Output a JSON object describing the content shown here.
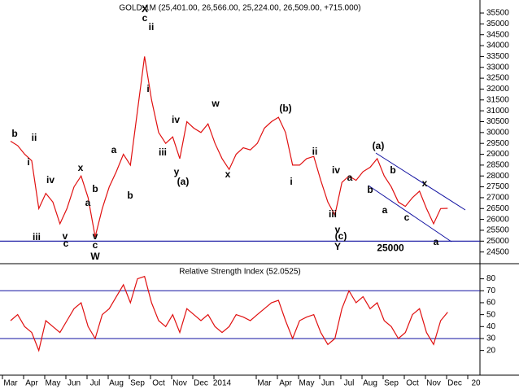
{
  "chart_data": [
    {
      "type": "line",
      "title": "GOLD-1M (25,401.00, 26,566.00, 25,224.00, 26,509.00, +715.000)",
      "color": "#e01010",
      "values": [
        29600,
        29400,
        29000,
        28700,
        26500,
        27200,
        26800,
        25800,
        26500,
        27500,
        28000,
        27000,
        25200,
        26500,
        27500,
        28200,
        29000,
        28500,
        31000,
        33500,
        31500,
        30000,
        29500,
        29800,
        28800,
        30500,
        30200,
        30000,
        30400,
        29500,
        28800,
        28300,
        29000,
        29300,
        29200,
        29500,
        30200,
        30500,
        30700,
        30000,
        28500,
        28500,
        28800,
        28900,
        27800,
        26800,
        26200,
        27700,
        28000,
        27800,
        28200,
        28400,
        28800,
        28000,
        27500,
        26800,
        26600,
        27000,
        27300,
        26500,
        25800,
        26500,
        26509,
        null,
        null,
        null,
        null
      ],
      "ylim": [
        24000,
        36100
      ],
      "yticks": [
        24500,
        25000,
        25500,
        26000,
        26500,
        27000,
        27500,
        28000,
        28500,
        29000,
        29500,
        30000,
        30500,
        31000,
        31500,
        32000,
        32500,
        33000,
        33500,
        34000,
        34500,
        35000,
        35500
      ],
      "hline": 25000,
      "hline_color": "#1010a0",
      "annotations": [
        {
          "text": "b",
          "color": "#1010c0"
        },
        {
          "text": "ii",
          "color": "#1010c0"
        },
        {
          "text": "i",
          "color": "#1010c0"
        },
        {
          "text": "iii",
          "color": "#1010c0"
        },
        {
          "text": "iv",
          "color": "#1010c0"
        },
        {
          "text": "v",
          "color": "#1010c0"
        },
        {
          "text": "c",
          "color": "#1010c0"
        },
        {
          "text": "x",
          "color": "#1010c0"
        },
        {
          "text": "b",
          "color": "#1010c0"
        },
        {
          "text": "a",
          "color": "#1010c0"
        },
        {
          "text": "v",
          "color": "#1010c0"
        },
        {
          "text": "c",
          "color": "#1010c0"
        },
        {
          "text": "W",
          "color": "#d01010"
        },
        {
          "text": "a",
          "color": "#1010c0"
        },
        {
          "text": "b",
          "color": "#1010c0"
        },
        {
          "text": "X",
          "color": "#d01010"
        },
        {
          "text": "c",
          "color": "#1010c0"
        },
        {
          "text": "ii",
          "color": "#1010c0"
        },
        {
          "text": "i",
          "color": "#1010c0"
        },
        {
          "text": "iii",
          "color": "#1010c0"
        },
        {
          "text": "iv",
          "color": "#1010c0"
        },
        {
          "text": "y",
          "color": "#1010c0"
        },
        {
          "text": "(a)",
          "color": "#1010c0"
        },
        {
          "text": "w",
          "color": "#1010c0"
        },
        {
          "text": "x",
          "color": "#1010c0"
        },
        {
          "text": "(b)",
          "color": "#1010c0"
        },
        {
          "text": "i",
          "color": "#1010c0"
        },
        {
          "text": "ii",
          "color": "#1010c0"
        },
        {
          "text": "iv",
          "color": "#1010c0"
        },
        {
          "text": "iii",
          "color": "#1010c0"
        },
        {
          "text": "v",
          "color": "#1010c0"
        },
        {
          "text": "(c)",
          "color": "#1010c0"
        },
        {
          "text": "Y",
          "color": "#d01010"
        },
        {
          "text": "(a)",
          "color": "#1010c0"
        },
        {
          "text": "a",
          "color": "#1010c0"
        },
        {
          "text": "b",
          "color": "#1010c0"
        },
        {
          "text": "b",
          "color": "#1010c0"
        },
        {
          "text": "a",
          "color": "#1010c0"
        },
        {
          "text": "c",
          "color": "#1010c0"
        },
        {
          "text": "x",
          "color": "#1010c0"
        },
        {
          "text": "a",
          "color": "#1010c0"
        }
      ]
    },
    {
      "type": "line",
      "title": "Relative Strength Index (52.0525)",
      "color": "#e01010",
      "values": [
        45,
        50,
        40,
        35,
        20,
        45,
        40,
        35,
        45,
        55,
        60,
        40,
        30,
        50,
        55,
        65,
        75,
        60,
        80,
        82,
        60,
        45,
        40,
        50,
        35,
        55,
        50,
        45,
        50,
        40,
        35,
        40,
        50,
        48,
        45,
        50,
        55,
        60,
        62,
        45,
        30,
        45,
        48,
        50,
        35,
        25,
        30,
        55,
        70,
        60,
        65,
        55,
        60,
        45,
        40,
        30,
        35,
        50,
        55,
        35,
        25,
        45,
        52.0525,
        null,
        null,
        null,
        null
      ],
      "ylim": [
        0,
        92
      ],
      "yticks": [
        20,
        30,
        40,
        50,
        60,
        70,
        80
      ],
      "hlines": [
        30,
        70
      ],
      "hline_color": "#1010a0",
      "categories": [
        "Mar",
        null,
        null,
        "Apr",
        null,
        null,
        "May",
        null,
        null,
        "Jun",
        null,
        null,
        "Jul",
        null,
        null,
        "Aug",
        null,
        null,
        "Sep",
        null,
        null,
        "Oct",
        null,
        null,
        "Nov",
        null,
        null,
        "Dec",
        null,
        null,
        "2014",
        null,
        null,
        null,
        null,
        null,
        "Mar",
        null,
        null,
        "Apr",
        null,
        null,
        "May",
        null,
        null,
        "Jun",
        null,
        null,
        "Jul",
        null,
        null,
        "Aug",
        null,
        null,
        "Sep",
        null,
        null,
        "Oct",
        null,
        null,
        "Nov",
        null,
        null,
        "Dec",
        null,
        null,
        "20"
      ]
    }
  ]
}
